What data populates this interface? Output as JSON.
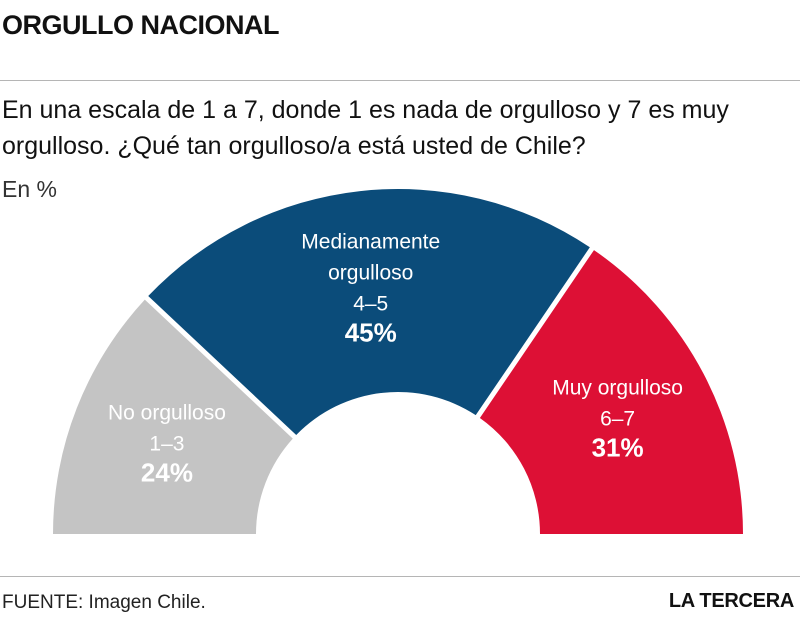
{
  "header": {
    "title": "ORGULLO NACIONAL"
  },
  "question": "En una escala de 1 a 7, donde 1 es nada de orgulloso y 7 es muy orgulloso. ¿Qué tan orgulloso/a está usted de Chile?",
  "unit": "En %",
  "chart_data": {
    "type": "pie",
    "subtype": "semicircle-donut",
    "unit": "%",
    "slices": [
      {
        "name": "No orgulloso",
        "range": "1-3",
        "value": 24,
        "percent_label": "24%",
        "color": "#c4c4c4"
      },
      {
        "name": "Medianamente orgulloso",
        "range": "4-5",
        "value": 45,
        "percent_label": "45%",
        "color": "#0b4c7a"
      },
      {
        "name": "Muy orgulloso",
        "range": "6-7",
        "value": 31,
        "percent_label": "31%",
        "color": "#dd1035"
      }
    ]
  },
  "footer": {
    "source": "FUENTE: Imagen Chile.",
    "brand": "LA TERCERA"
  }
}
